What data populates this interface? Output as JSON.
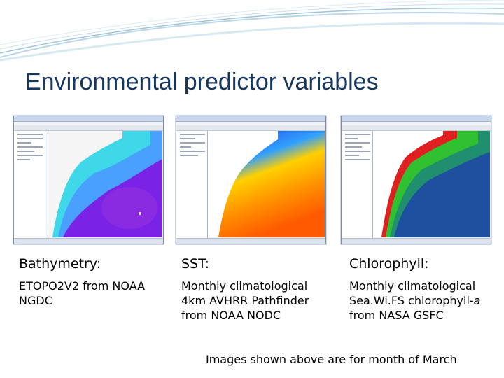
{
  "slide": {
    "title": "Environmental predictor variables",
    "note": "Images shown above are for month of March"
  },
  "panels": [
    {
      "heading": "Bathymetry:",
      "lines": [
        "ETOPO2V2 from NOAA",
        "NGDC"
      ],
      "colors": {
        "land": "#f5f5f5",
        "shelf": "#3fd8e8",
        "deep": "#6b1fe0",
        "abyss": "#8a2be2"
      }
    },
    {
      "heading": "SST:",
      "lines": [
        "Monthly climatological",
        "4km AVHRR Pathfinder",
        "from NOAA NODC"
      ],
      "colors": {
        "land": "#ffffff",
        "cold": "#2030e0",
        "mid": "#ffd000",
        "warm": "#ff5a00"
      }
    },
    {
      "heading": "Chlorophyll:",
      "lines_before_italic": "Monthly climatological",
      "line2_prefix": "Sea.Wi.FS chlorophyll-",
      "line2_italic": "a",
      "line3": "from NASA GSFC",
      "colors": {
        "land": "#ffffff",
        "high": "#e02020",
        "mid": "#30c030",
        "low": "#1f4f9f"
      }
    }
  ],
  "theme": {
    "title_color": "#17375e",
    "swoosh_color": "#9fc4dc"
  }
}
